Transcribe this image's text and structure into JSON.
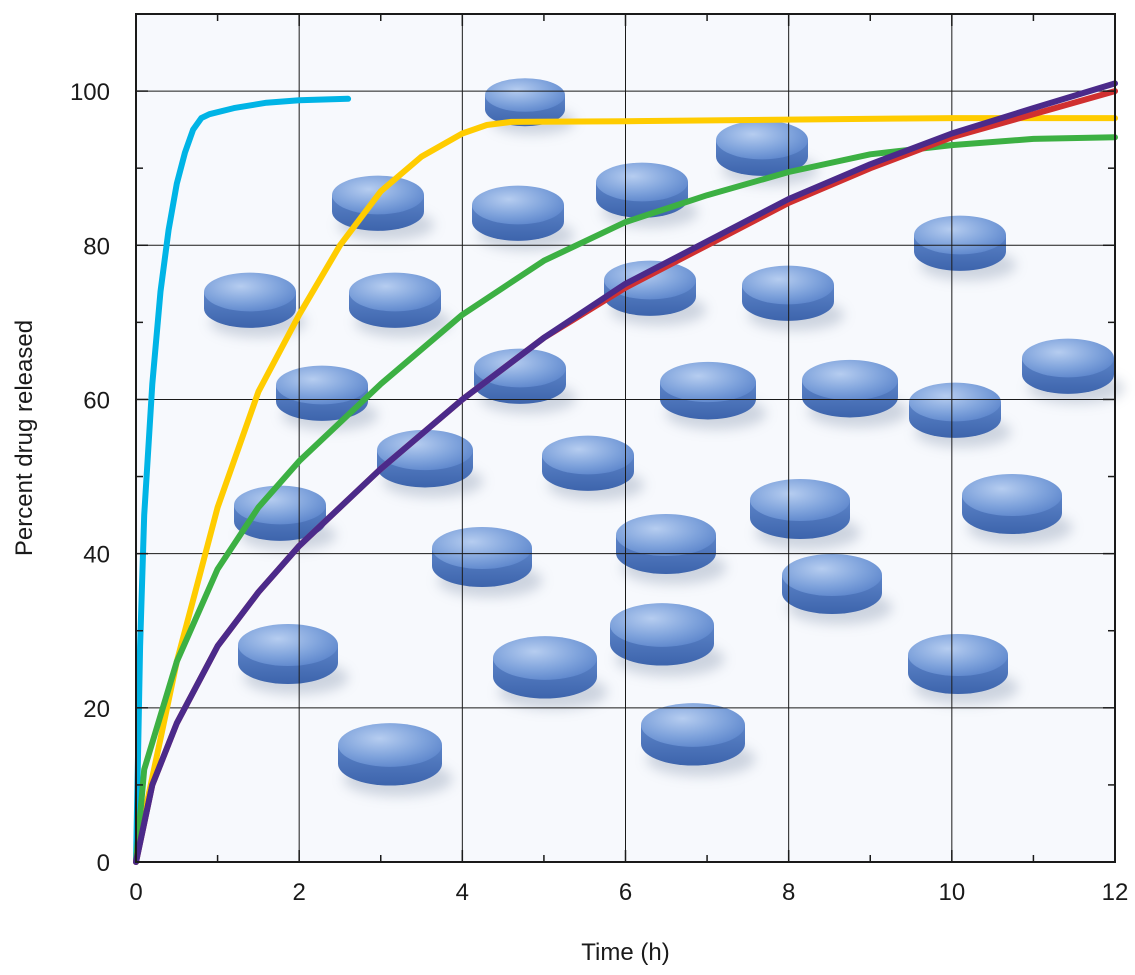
{
  "chart_data": {
    "type": "line",
    "xlabel": "Time (h)",
    "ylabel": "Percent drug released",
    "xlim": [
      0,
      12
    ],
    "ylim": [
      0,
      110
    ],
    "xticks": [
      0,
      2,
      4,
      6,
      8,
      10,
      12
    ],
    "yticks": [
      0,
      20,
      40,
      60,
      80,
      100
    ],
    "grid": true,
    "background": "photo of round blue tablets",
    "series": [
      {
        "color": "#00b4e6",
        "x": [
          0,
          0.05,
          0.1,
          0.2,
          0.3,
          0.4,
          0.5,
          0.6,
          0.7,
          0.8,
          0.9,
          1.2,
          1.6,
          2.0,
          2.6
        ],
        "y": [
          0,
          28,
          45,
          62,
          74,
          82,
          88,
          92,
          95,
          96.5,
          97,
          97.8,
          98.5,
          98.8,
          99
        ]
      },
      {
        "color": "#ffcc00",
        "x": [
          0,
          0.1,
          0.3,
          0.5,
          0.8,
          1.0,
          1.5,
          2.0,
          2.5,
          3.0,
          3.5,
          4.0,
          4.3,
          4.6,
          6.0,
          8.0,
          10.0,
          12.0
        ],
        "y": [
          0,
          6,
          16,
          26,
          38,
          46,
          61,
          71,
          80,
          87,
          91.5,
          94.5,
          95.6,
          96,
          96.1,
          96.3,
          96.5,
          96.5
        ]
      },
      {
        "color": "#3cb043",
        "x": [
          0,
          0.1,
          0.5,
          1.0,
          1.5,
          2.0,
          3.0,
          4.0,
          5.0,
          6.0,
          7.0,
          8.0,
          9.0,
          10.0,
          11.0,
          12.0
        ],
        "y": [
          0,
          12,
          26,
          38,
          46,
          52,
          62,
          71,
          78,
          83,
          86.5,
          89.5,
          91.8,
          93,
          93.8,
          94
        ]
      },
      {
        "color": "#d03030",
        "x": [
          0,
          0.2,
          0.5,
          1.0,
          1.5,
          2.0,
          3.0,
          4.0,
          5.0,
          6.0,
          7.0,
          8.0,
          9.0,
          10.0,
          11.0,
          12.0
        ],
        "y": [
          0,
          10,
          18,
          28,
          35,
          41,
          51,
          60,
          68,
          74.5,
          80,
          85.5,
          90,
          94,
          97,
          100
        ]
      },
      {
        "color": "#4b2a8a",
        "x": [
          0,
          0.2,
          0.5,
          1.0,
          1.5,
          2.0,
          3.0,
          4.0,
          5.0,
          6.0,
          7.0,
          8.0,
          9.0,
          10.0,
          11.0,
          12.0
        ],
        "y": [
          0,
          10,
          18,
          28,
          35,
          41,
          51,
          60,
          68,
          75,
          80.5,
          86,
          90.5,
          94.5,
          97.8,
          101
        ]
      }
    ]
  }
}
